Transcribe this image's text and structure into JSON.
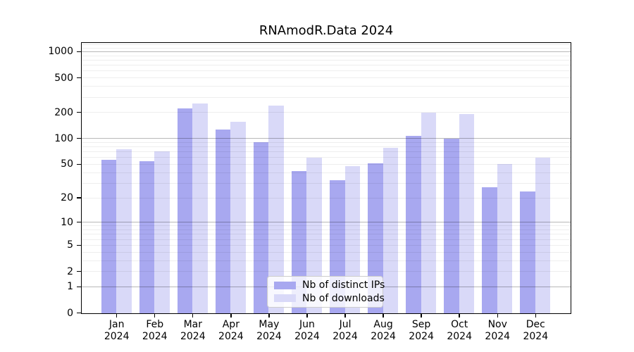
{
  "chart_data": {
    "type": "bar",
    "title": "RNAmodR.Data 2024",
    "categories": [
      "Jan",
      "Feb",
      "Mar",
      "Apr",
      "May",
      "Jun",
      "Jul",
      "Aug",
      "Sep",
      "Oct",
      "Nov",
      "Dec"
    ],
    "year_label": "2024",
    "series": [
      {
        "name": "Nb of distinct IPs",
        "color": "#a8a8f0",
        "values": [
          57,
          55,
          226,
          127,
          92,
          42,
          33,
          52,
          108,
          100,
          27,
          24
        ]
      },
      {
        "name": "Nb of downloads",
        "color": "#d9d9f8",
        "values": [
          76,
          71,
          255,
          158,
          240,
          60,
          48,
          79,
          200,
          192,
          51,
          60
        ]
      }
    ],
    "xlabel": "",
    "ylabel": "",
    "yscale": "log10(1+x)",
    "ylim": [
      0,
      1250
    ],
    "y_ticks": [
      1000,
      500,
      200,
      100,
      50,
      20,
      10,
      5,
      2,
      1,
      0
    ],
    "grid": true,
    "legend_position": "lower-center"
  }
}
